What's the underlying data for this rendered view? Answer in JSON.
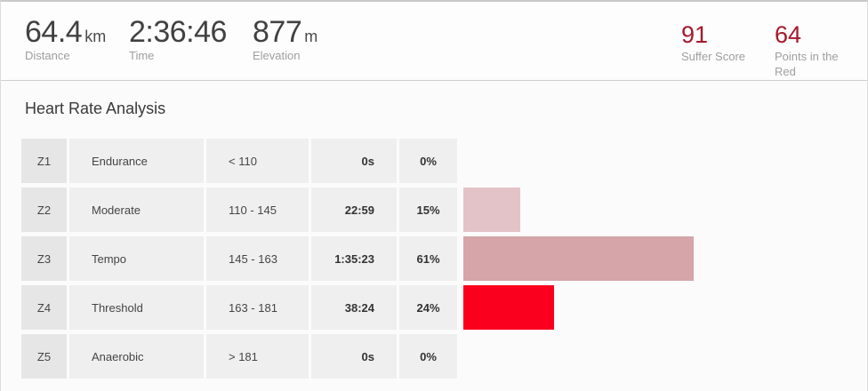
{
  "header": {
    "stats": [
      {
        "value": "64.4",
        "unit": "km",
        "label": "Distance"
      },
      {
        "value": "2:36:46",
        "unit": "",
        "label": "Time"
      },
      {
        "value": "877",
        "unit": "m",
        "label": "Elevation"
      }
    ],
    "scores": [
      {
        "value": "91",
        "label": "Suffer Score"
      },
      {
        "value": "64",
        "label": "Points in the Red"
      }
    ]
  },
  "section": {
    "title": "Heart Rate Analysis"
  },
  "zones": [
    {
      "zone": "Z1",
      "name": "Endurance",
      "range": "< 110",
      "time": "0s",
      "percent": "0%",
      "percent_value": 0,
      "bar_color": "none"
    },
    {
      "zone": "Z2",
      "name": "Moderate",
      "range": "110 - 145",
      "time": "22:59",
      "percent": "15%",
      "percent_value": 15,
      "bar_color": "#e3c3c7"
    },
    {
      "zone": "Z3",
      "name": "Tempo",
      "range": "145 - 163",
      "time": "1:35:23",
      "percent": "61%",
      "percent_value": 61,
      "bar_color": "#d5a5a9"
    },
    {
      "zone": "Z4",
      "name": "Threshold",
      "range": "163 - 181",
      "time": "38:24",
      "percent": "24%",
      "percent_value": 24,
      "bar_color": "#fa001e"
    },
    {
      "zone": "Z5",
      "name": "Anaerobic",
      "range": "> 181",
      "time": "0s",
      "percent": "0%",
      "percent_value": 0,
      "bar_color": "none"
    }
  ],
  "chart_data": {
    "type": "bar",
    "orientation": "horizontal",
    "title": "Heart Rate Analysis",
    "categories": [
      "Z1 Endurance",
      "Z2 Moderate",
      "Z3 Tempo",
      "Z4 Threshold",
      "Z5 Anaerobic"
    ],
    "values": [
      0,
      15,
      61,
      24,
      0
    ],
    "value_unit": "%",
    "times": [
      "0s",
      "22:59",
      "1:35:23",
      "38:24",
      "0s"
    ],
    "hr_ranges": [
      "< 110",
      "110 - 145",
      "145 - 163",
      "163 - 181",
      "> 181"
    ],
    "xlim": [
      0,
      100
    ],
    "grid": false,
    "legend": false,
    "bar_colors": [
      "none",
      "#e3c3c7",
      "#d5a5a9",
      "#fa001e",
      "none"
    ]
  },
  "colors": {
    "accent_red": "#a6182b",
    "bar_z2": "#e3c3c7",
    "bar_z3": "#d5a5a9",
    "bar_z4": "#fa001e",
    "cell_bg": "#efefef",
    "zone_badge_bg": "#e6e6e6"
  }
}
